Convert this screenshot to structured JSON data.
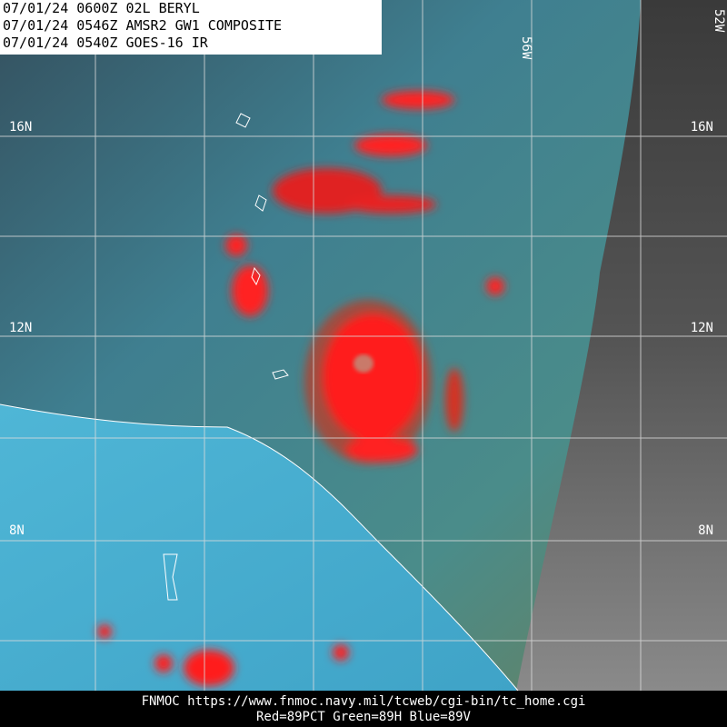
{
  "header": {
    "lines": [
      "07/01/24 0600Z  02L BERYL",
      "07/01/24 0546Z  AMSR2 GW1 COMPOSITE",
      "07/01/24 0540Z  GOES-16 IR"
    ]
  },
  "grid_labels": {
    "lat_left": [
      "16N",
      "12N",
      "8N"
    ],
    "lat_right": [
      "16N",
      "12N",
      "8N"
    ],
    "lon": [
      "56W",
      "52W"
    ]
  },
  "footer": {
    "source": "FNMOC https://www.fnmoc.navy.mil/tcweb/cgi-bin/tc_home.cgi",
    "channels": "Red=89PCT  Green=89H  Blue=89V"
  }
}
